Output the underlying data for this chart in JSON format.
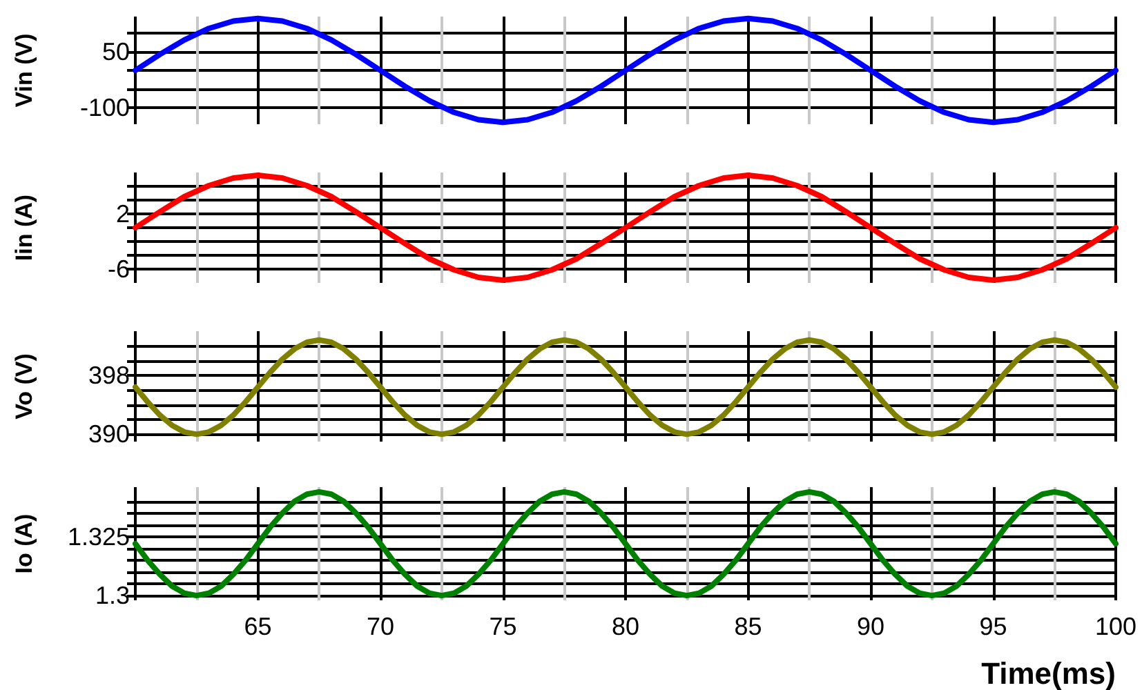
{
  "chart_data": [
    {
      "type": "line",
      "ylabel": "Vin (V)",
      "tick_labels": "y",
      "grid": true,
      "marker": "none",
      "line_style": "solid",
      "xlim": [
        60,
        100
      ],
      "xticks": [
        {
          "value": 60,
          "label": null
        },
        {
          "value": 65,
          "label": null
        },
        {
          "value": 70,
          "label": null
        },
        {
          "value": 75,
          "label": null
        },
        {
          "value": 80,
          "label": null
        },
        {
          "value": 85,
          "label": null
        },
        {
          "value": 90,
          "label": null
        },
        {
          "value": 95,
          "label": null
        },
        {
          "value": 100,
          "label": null
        }
      ],
      "ylim": [
        -145,
        145
      ],
      "yticks": [
        {
          "value": 100,
          "label": null
        },
        50,
        {
          "value": 0,
          "label": null
        },
        {
          "value": -50,
          "label": null
        },
        -100
      ],
      "x": [
        60,
        61,
        62,
        63,
        64,
        65,
        66,
        67,
        68,
        69,
        70,
        71,
        72,
        73,
        74,
        75,
        76,
        77,
        78,
        79,
        80,
        81,
        82,
        83,
        84,
        85,
        86,
        87,
        88,
        89,
        90,
        91,
        92,
        93,
        94,
        95,
        96,
        97,
        98,
        99,
        100
      ],
      "series": [
        {
          "color": "#0000ff",
          "values": [
            0,
            43,
            82,
            113,
            133,
            140,
            133,
            113,
            82,
            43,
            0,
            -43,
            -82,
            -113,
            -133,
            -140,
            -133,
            -113,
            -82,
            -43,
            0,
            43,
            82,
            113,
            133,
            140,
            133,
            113,
            82,
            43,
            0,
            -43,
            -82,
            -113,
            -133,
            -140,
            -133,
            -113,
            -82,
            -43,
            0
          ]
        }
      ]
    },
    {
      "type": "line",
      "ylabel": "Iin (A)",
      "tick_labels": "y",
      "grid": true,
      "marker": "none",
      "line_style": "solid",
      "xlim": [
        60,
        100
      ],
      "xticks": [
        {
          "value": 60,
          "label": null
        },
        {
          "value": 65,
          "label": null
        },
        {
          "value": 70,
          "label": null
        },
        {
          "value": 75,
          "label": null
        },
        {
          "value": 80,
          "label": null
        },
        {
          "value": 85,
          "label": null
        },
        {
          "value": 90,
          "label": null
        },
        {
          "value": 95,
          "label": null
        },
        {
          "value": 100,
          "label": null
        }
      ],
      "ylim": [
        -8,
        8
      ],
      "yticks": [
        {
          "value": 6,
          "label": null
        },
        {
          "value": 4,
          "label": null
        },
        2,
        {
          "value": 0,
          "label": null
        },
        {
          "value": -2,
          "label": null
        },
        {
          "value": -4,
          "label": null
        },
        -6
      ],
      "x": [
        60,
        61,
        62,
        63,
        64,
        65,
        66,
        67,
        68,
        69,
        70,
        71,
        72,
        73,
        74,
        75,
        76,
        77,
        78,
        79,
        80,
        81,
        82,
        83,
        84,
        85,
        86,
        87,
        88,
        89,
        90,
        91,
        92,
        93,
        94,
        95,
        96,
        97,
        98,
        99,
        100
      ],
      "series": [
        {
          "color": "#ff0000",
          "values": [
            0,
            2.3,
            4.5,
            6.1,
            7.2,
            7.6,
            7.2,
            6.1,
            4.5,
            2.3,
            0,
            -2.3,
            -4.5,
            -6.1,
            -7.2,
            -7.6,
            -7.2,
            -6.1,
            -4.5,
            -2.3,
            0,
            2.3,
            4.5,
            6.1,
            7.2,
            7.6,
            7.2,
            6.1,
            4.5,
            2.3,
            0,
            -2.3,
            -4.5,
            -6.1,
            -7.2,
            -7.6,
            -7.2,
            -6.1,
            -4.5,
            -2.3,
            0
          ]
        }
      ]
    },
    {
      "type": "line",
      "ylabel": "Vo (V)",
      "tick_labels": "y",
      "grid": true,
      "marker": "none",
      "line_style": "solid",
      "xlim": [
        60,
        100
      ],
      "xticks": [
        {
          "value": 60,
          "label": null
        },
        {
          "value": 65,
          "label": null
        },
        {
          "value": 70,
          "label": null
        },
        {
          "value": 75,
          "label": null
        },
        {
          "value": 80,
          "label": null
        },
        {
          "value": 85,
          "label": null
        },
        {
          "value": 90,
          "label": null
        },
        {
          "value": 95,
          "label": null
        },
        {
          "value": 100,
          "label": null
        }
      ],
      "ylim": [
        389,
        404
      ],
      "yticks": [
        {
          "value": 402,
          "label": null
        },
        {
          "value": 400,
          "label": null
        },
        398,
        {
          "value": 396,
          "label": null
        },
        {
          "value": 394,
          "label": null
        },
        {
          "value": 392,
          "label": null
        },
        390
      ],
      "x": [
        60,
        60.5,
        61,
        61.5,
        62,
        62.5,
        63,
        63.5,
        64,
        64.5,
        65,
        65.5,
        66,
        66.5,
        67,
        67.5,
        68,
        68.5,
        69,
        69.5,
        70,
        70.5,
        71,
        71.5,
        72,
        72.5,
        73,
        73.5,
        74,
        74.5,
        75,
        75.5,
        76,
        76.5,
        77,
        77.5,
        78,
        78.5,
        79,
        79.5,
        80,
        80.5,
        81,
        81.5,
        82,
        82.5,
        83,
        83.5,
        84,
        84.5,
        85,
        85.5,
        86,
        86.5,
        87,
        87.5,
        88,
        88.5,
        89,
        89.5,
        90,
        90.5,
        91,
        91.5,
        92,
        92.5,
        93,
        93.5,
        94,
        94.5,
        95,
        95.5,
        96,
        96.5,
        97,
        97.5,
        98,
        98.5,
        99,
        99.5,
        100
      ],
      "series": [
        {
          "color": "#808000",
          "values": [
            396.4,
            394.4,
            392.6,
            391.2,
            390.3,
            390.0,
            390.3,
            391.2,
            392.6,
            394.4,
            396.4,
            398.4,
            400.2,
            401.6,
            402.5,
            402.8,
            402.5,
            401.6,
            400.2,
            398.4,
            396.4,
            394.4,
            392.6,
            391.2,
            390.3,
            390.0,
            390.3,
            391.2,
            392.6,
            394.4,
            396.4,
            398.4,
            400.2,
            401.6,
            402.5,
            402.8,
            402.5,
            401.6,
            400.2,
            398.4,
            396.4,
            394.4,
            392.6,
            391.2,
            390.3,
            390.0,
            390.3,
            391.2,
            392.6,
            394.4,
            396.4,
            398.4,
            400.2,
            401.6,
            402.5,
            402.8,
            402.5,
            401.6,
            400.2,
            398.4,
            396.4,
            394.4,
            392.6,
            391.2,
            390.3,
            390.0,
            390.3,
            391.2,
            392.6,
            394.4,
            396.4,
            398.4,
            400.2,
            401.6,
            402.5,
            402.8,
            402.5,
            401.6,
            400.2,
            398.4,
            396.4
          ]
        }
      ]
    },
    {
      "type": "line",
      "ylabel": "Io (A)",
      "xlabel": "Time(ms)",
      "grid": true,
      "marker": "none",
      "line_style": "solid",
      "xlim": [
        60,
        100
      ],
      "xticks": [
        {
          "value": 60,
          "label": null
        },
        65,
        70,
        75,
        80,
        85,
        90,
        95,
        100
      ],
      "ylim": [
        1.298,
        1.346
      ],
      "yticks": [
        {
          "value": 1.34,
          "label": null
        },
        {
          "value": 1.335,
          "label": null
        },
        {
          "value": 1.33,
          "label": null
        },
        1.325,
        {
          "value": 1.32,
          "label": null
        },
        {
          "value": 1.315,
          "label": null
        },
        {
          "value": 1.31,
          "label": null
        },
        {
          "value": 1.305,
          "label": null
        },
        1.3
      ],
      "x": [
        60,
        60.5,
        61,
        61.5,
        62,
        62.5,
        63,
        63.5,
        64,
        64.5,
        65,
        65.5,
        66,
        66.5,
        67,
        67.5,
        68,
        68.5,
        69,
        69.5,
        70,
        70.5,
        71,
        71.5,
        72,
        72.5,
        73,
        73.5,
        74,
        74.5,
        75,
        75.5,
        76,
        76.5,
        77,
        77.5,
        78,
        78.5,
        79,
        79.5,
        80,
        80.5,
        81,
        81.5,
        82,
        82.5,
        83,
        83.5,
        84,
        84.5,
        85,
        85.5,
        86,
        86.5,
        87,
        87.5,
        88,
        88.5,
        89,
        89.5,
        90,
        90.5,
        91,
        91.5,
        92,
        92.5,
        93,
        93.5,
        94,
        94.5,
        95,
        95.5,
        96,
        96.5,
        97,
        97.5,
        98,
        98.5,
        99,
        99.5,
        100
      ],
      "series": [
        {
          "color": "#008000",
          "values": [
            1.322,
            1.315,
            1.309,
            1.304,
            1.301,
            1.3,
            1.301,
            1.304,
            1.309,
            1.315,
            1.322,
            1.329,
            1.335,
            1.34,
            1.343,
            1.344,
            1.343,
            1.34,
            1.335,
            1.329,
            1.322,
            1.315,
            1.309,
            1.304,
            1.301,
            1.3,
            1.301,
            1.304,
            1.309,
            1.315,
            1.322,
            1.329,
            1.335,
            1.34,
            1.343,
            1.344,
            1.343,
            1.34,
            1.335,
            1.329,
            1.322,
            1.315,
            1.309,
            1.304,
            1.301,
            1.3,
            1.301,
            1.304,
            1.309,
            1.315,
            1.322,
            1.329,
            1.335,
            1.34,
            1.343,
            1.344,
            1.343,
            1.34,
            1.335,
            1.329,
            1.322,
            1.315,
            1.309,
            1.304,
            1.301,
            1.3,
            1.301,
            1.304,
            1.309,
            1.315,
            1.322,
            1.329,
            1.335,
            1.34,
            1.343,
            1.344,
            1.343,
            1.34,
            1.335,
            1.329,
            1.322
          ]
        }
      ]
    }
  ]
}
